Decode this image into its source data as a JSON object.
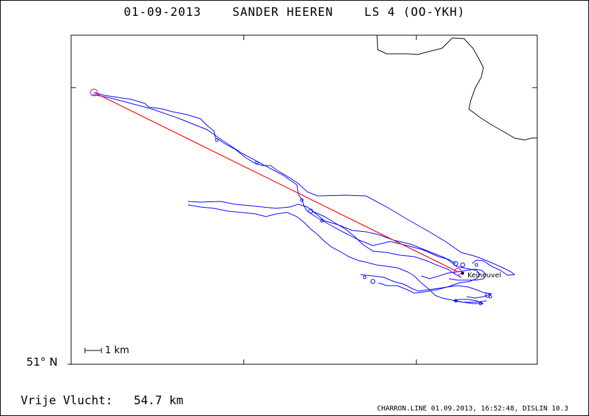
{
  "header": {
    "date": "01-09-2013",
    "pilot": "SANDER HEEREN",
    "glider": "LS 4 (OO-YKH)"
  },
  "map": {
    "latitude_label": "51° N",
    "scale_label": "1 km",
    "place_label": "Keiheuvel",
    "track_color": "#0000ff",
    "line_color": "#ff0000",
    "marker_color": "#cc00cc",
    "border_color": "#000000"
  },
  "summary": {
    "distance_label": "Vrije Vlucht:",
    "distance_value": "54.7 km"
  },
  "footer": {
    "text": "CHARRON.LINE 01.09.2013, 16:52:48, DISLIN 10.3"
  }
}
